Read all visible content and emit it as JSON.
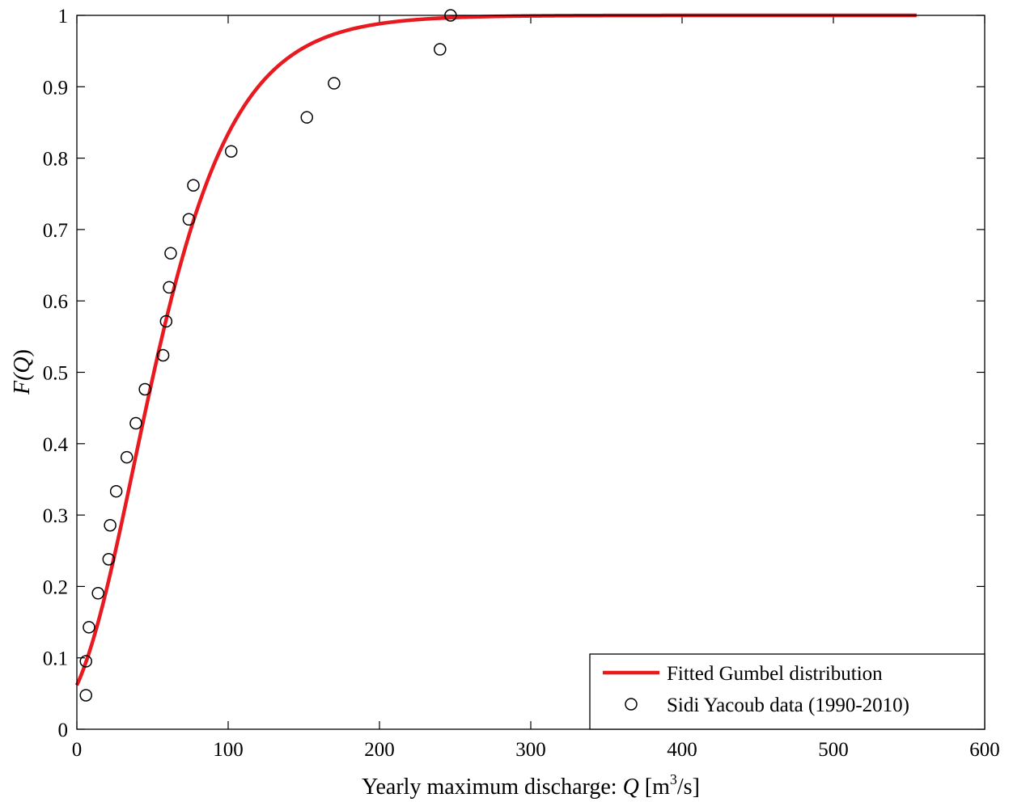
{
  "chart_data": {
    "type": "scatter",
    "xlabel_prefix": "Yearly maximum discharge: ",
    "xlabel_var": "Q",
    "xlabel_unit_pre": " [m",
    "xlabel_unit_sup": "3",
    "xlabel_unit_post": "/s]",
    "ylabel_func": "F(",
    "ylabel_var": "Q",
    "ylabel_close": ")",
    "xlim": [
      0,
      600
    ],
    "ylim": [
      0,
      1
    ],
    "x_ticks": [
      0,
      100,
      200,
      300,
      400,
      500,
      600
    ],
    "y_ticks": [
      0,
      0.1,
      0.2,
      0.3,
      0.4,
      0.5,
      0.6,
      0.7,
      0.8,
      0.9,
      1
    ],
    "x_tick_labels": [
      "0",
      "100",
      "200",
      "300",
      "400",
      "500",
      "600"
    ],
    "y_tick_labels": [
      "0",
      "0.1",
      "0.2",
      "0.3",
      "0.4",
      "0.5",
      "0.6",
      "0.7",
      "0.8",
      "0.9",
      "1"
    ],
    "grid": false,
    "legend_position": "bottom-right",
    "series": [
      {
        "name": "Fitted Gumbel distribution",
        "kind": "line",
        "color": "#e8191f",
        "distribution": "gumbel",
        "x_range": [
          0,
          555
        ],
        "location": 37.5,
        "scale": 36.6
      },
      {
        "name": "Sidi Yacoub data (1990-2010)",
        "kind": "scatter",
        "marker": "open-circle",
        "color": "#000000",
        "x": [
          6,
          6,
          8,
          14,
          21,
          22,
          26,
          33,
          39,
          45,
          57,
          59,
          61,
          62,
          74,
          77,
          102,
          152,
          170,
          240,
          247
        ],
        "y": [
          0.0476,
          0.0952,
          0.1429,
          0.1905,
          0.2381,
          0.2857,
          0.3333,
          0.381,
          0.4286,
          0.4762,
          0.5238,
          0.5714,
          0.619,
          0.6667,
          0.7143,
          0.7619,
          0.8095,
          0.8571,
          0.9048,
          0.9524,
          1.0
        ]
      }
    ]
  }
}
